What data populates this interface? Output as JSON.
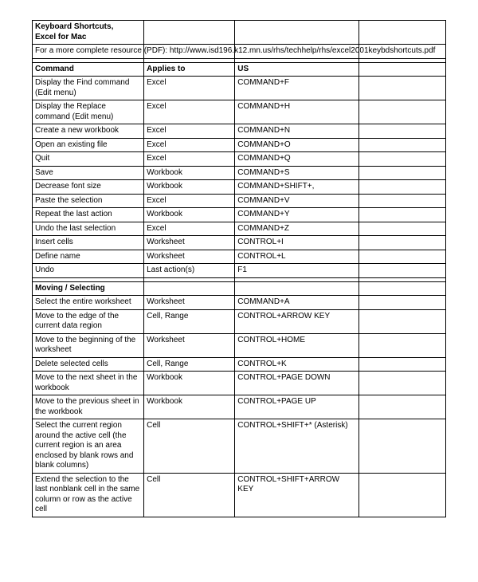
{
  "title_line1": "Keyboard Shortcuts,",
  "title_line2": "Excel for Mac",
  "resource_note": "For a more complete resource (PDF): http://www.isd196.k12.mn.us/rhs/techhelp/rhs/excel2001keybdshortcuts.pdf",
  "headers": {
    "col1": "Command",
    "col2": "Applies to",
    "col3": "US"
  },
  "section2_title": "Moving / Selecting",
  "rows1": [
    {
      "cmd": "Display the Find command (Edit menu)",
      "applies": "Excel",
      "us": "COMMAND+F"
    },
    {
      "cmd": "Display the Replace command (Edit menu)",
      "applies": "Excel",
      "us": "COMMAND+H"
    },
    {
      "cmd": "Create a new workbook",
      "applies": "Excel",
      "us": "COMMAND+N"
    },
    {
      "cmd": "Open an existing file",
      "applies": "Excel",
      "us": "COMMAND+O"
    },
    {
      "cmd": "Quit",
      "applies": "Excel",
      "us": "COMMAND+Q"
    },
    {
      "cmd": "Save",
      "applies": "Workbook",
      "us": "COMMAND+S"
    },
    {
      "cmd": "Decrease font size",
      "applies": "Workbook",
      "us": "COMMAND+SHIFT+,"
    },
    {
      "cmd": "Paste the selection",
      "applies": "Excel",
      "us": "COMMAND+V"
    },
    {
      "cmd": "Repeat the last action",
      "applies": "Workbook",
      "us": "COMMAND+Y"
    },
    {
      "cmd": "Undo the last selection",
      "applies": "Excel",
      "us": "COMMAND+Z"
    },
    {
      "cmd": "Insert cells",
      "applies": "Worksheet",
      "us": "CONTROL+I"
    },
    {
      "cmd": "Define name",
      "applies": "Worksheet",
      "us": "CONTROL+L"
    },
    {
      "cmd": "Undo",
      "applies": "Last action(s)",
      "us": "F1"
    }
  ],
  "rows2": [
    {
      "cmd": "Select the entire worksheet",
      "applies": "Worksheet",
      "us": "COMMAND+A"
    },
    {
      "cmd": "Move to the edge of the current data region",
      "applies": "Cell, Range",
      "us": "CONTROL+ARROW KEY"
    },
    {
      "cmd": "Move to the beginning of the worksheet",
      "applies": "Worksheet",
      "us": "CONTROL+HOME"
    },
    {
      "cmd": "Delete selected cells",
      "applies": "Cell, Range",
      "us": "CONTROL+K"
    },
    {
      "cmd": "Move to the next sheet in the workbook",
      "applies": "Workbook",
      "us": "CONTROL+PAGE DOWN"
    },
    {
      "cmd": "Move to the previous sheet in the workbook",
      "applies": "Workbook",
      "us": "CONTROL+PAGE UP"
    },
    {
      "cmd": "Select the current region around the active cell (the current region is an area enclosed by blank rows and blank columns)",
      "applies": "Cell",
      "us": "CONTROL+SHIFT+* (Asterisk)"
    },
    {
      "cmd": "Extend the selection to the last nonblank cell in the same column or row as the active cell",
      "applies": "Cell",
      "us": "CONTROL+SHIFT+ARROW KEY"
    }
  ]
}
